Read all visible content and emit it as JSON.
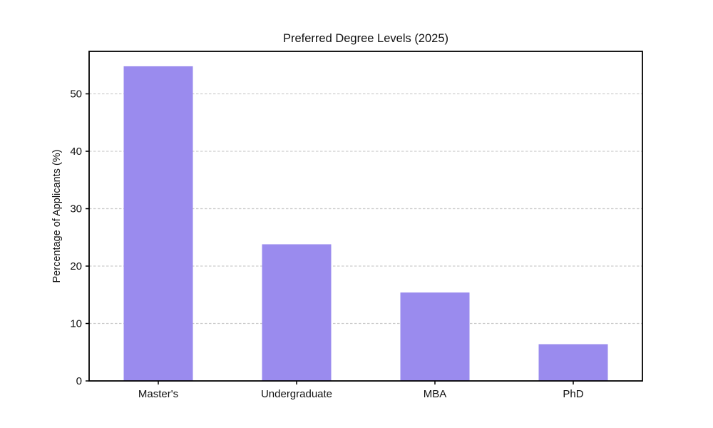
{
  "figure": {
    "background": "#ffffff",
    "plot_background": "#ffffff",
    "spine_color": "#000000",
    "text_color": "#111111"
  },
  "chart_data": {
    "type": "bar",
    "title": "Preferred Degree Levels (2025)",
    "xlabel": "",
    "ylabel": "Percentage of Applicants (%)",
    "categories": [
      "Master's",
      "Undergraduate",
      "MBA",
      "PhD"
    ],
    "values": [
      54.8,
      23.8,
      15.4,
      6.4
    ],
    "yticks": [
      0,
      10,
      20,
      30,
      40,
      50
    ],
    "ylim": [
      0,
      57.4
    ],
    "bar_color": "#9a8bee",
    "bar_width_fraction": 0.5,
    "grid": "horizontal-dashed",
    "grid_color": "#cccccc",
    "legend_position": "none"
  }
}
